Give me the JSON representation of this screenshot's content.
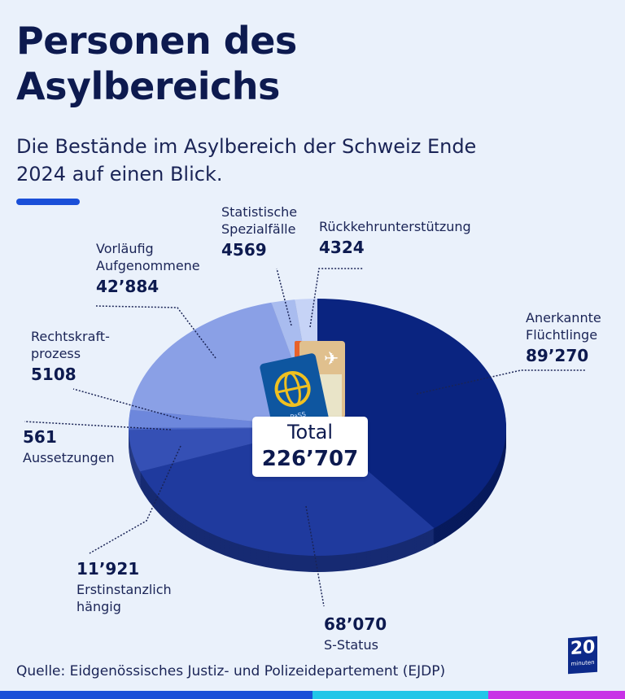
{
  "title": "Personen des Asylbereichs",
  "subtitle": "Die Bestände im Asylbereich der Schweiz Ende 2024 auf einen Blick.",
  "source": "Quelle: Eidgenössisches Justiz- und Polizeidepartement (EJDP)",
  "logo": {
    "number": "20",
    "text": "minuten"
  },
  "total": {
    "label": "Total",
    "value": "226’707"
  },
  "colors": {
    "accent": "#1a4fd8",
    "stripe_blue": "#1a4fd8",
    "stripe_cyan": "#22c6e8",
    "stripe_magenta": "#c832e6",
    "background": "#eaf1fb"
  },
  "chart_data": {
    "type": "pie",
    "title": "Personen des Asylbereichs",
    "style": "3d-ellipse, clockwise from top",
    "slices": [
      {
        "label": "Anerkannte Flüchtlinge",
        "value": 89270,
        "display": "89’270",
        "color": "#0a2480"
      },
      {
        "label": "S-Status",
        "value": 68070,
        "display": "68’070",
        "color": "#1f3a9e"
      },
      {
        "label": "Erstinstanzlich hängig",
        "value": 11921,
        "display": "11’921",
        "color": "#3550b5"
      },
      {
        "label": "Aussetzungen",
        "value": 561,
        "display": "561",
        "color": "#4a66c8"
      },
      {
        "label": "Rechtskraft-prozess",
        "value": 5108,
        "display": "5108",
        "color": "#6d87dc"
      },
      {
        "label": "Vorläufig Aufgenommene",
        "value": 42884,
        "display": "42’884",
        "color": "#8aa0e6"
      },
      {
        "label": "Statistische Spezialfälle",
        "value": 4569,
        "display": "4569",
        "color": "#a9bcef"
      },
      {
        "label": "Rückkehrunterstützung",
        "value": 4324,
        "display": "4324",
        "color": "#c6d3f6"
      }
    ]
  }
}
